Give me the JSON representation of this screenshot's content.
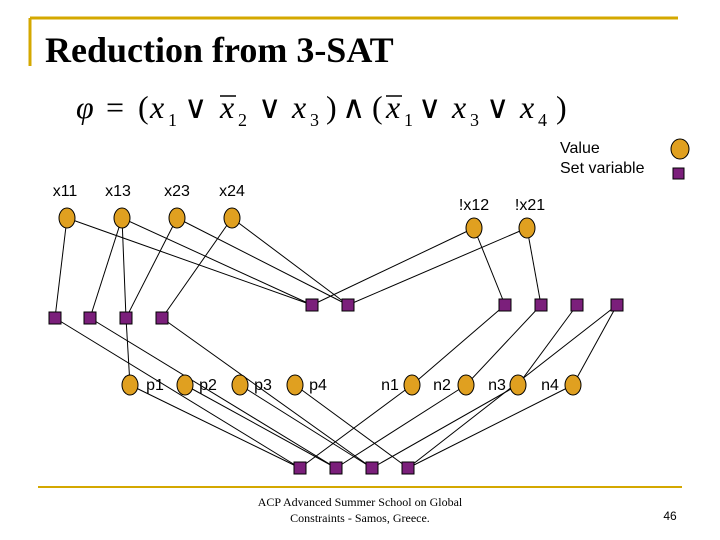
{
  "title": "Reduction from 3-SAT",
  "formula": [
    "φ",
    "=",
    "(",
    "x",
    "1",
    "∨",
    "x",
    "2",
    "∨",
    "x",
    "3",
    ")",
    "∧",
    "(",
    "x",
    "1",
    "∨",
    "x",
    "3",
    "∨",
    "x",
    "4",
    ")"
  ],
  "legend": {
    "value": "Value",
    "set_variable": "Set variable"
  },
  "nodes": [
    {
      "label": "x11"
    },
    {
      "label": "x13"
    },
    {
      "label": "x23"
    },
    {
      "label": "x24"
    },
    {
      "label": "!x12"
    },
    {
      "label": "!x21"
    },
    {
      "label": "p1"
    },
    {
      "label": "p2"
    },
    {
      "label": "p3"
    },
    {
      "label": "p4"
    },
    {
      "label": "n1"
    },
    {
      "label": "n2"
    },
    {
      "label": "n3"
    },
    {
      "label": "n4"
    }
  ],
  "footer": [
    "ACP Advanced Summer School on Global",
    "Constraints -  Samos, Greece."
  ],
  "page_number": "46"
}
